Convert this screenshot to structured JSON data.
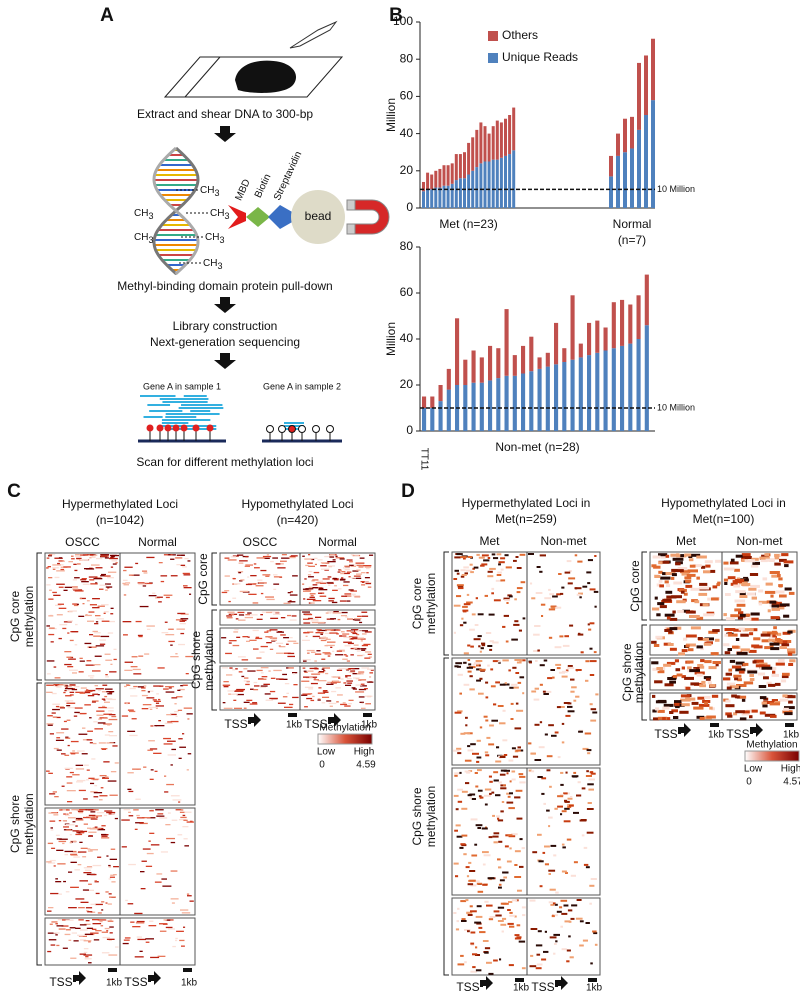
{
  "panel_a": {
    "letter": "A",
    "step1": "Extract and shear DNA to 300-bp",
    "ch": "CH",
    "sub": "3",
    "mbd": "MBD",
    "biotin": "Biotin",
    "streptavidin": "Streptavidin",
    "bead": "bead",
    "step2": "Methyl-binding domain protein pull-down",
    "step3": [
      "Library construction",
      "Next-generation sequencing"
    ],
    "sample1": "Gene A in sample 1",
    "sample2": "Gene A in sample 2",
    "step4": "Scan for different methylation loci"
  },
  "panel_b": {
    "letter": "B"
  },
  "chart_data": [
    {
      "type": "bar",
      "stacked": true,
      "ylabel": "Million",
      "ylim": [
        0,
        100
      ],
      "yticks": [
        0,
        20,
        40,
        60,
        80,
        100
      ],
      "legend": "upper center",
      "series": [
        {
          "name": "Unique Reads",
          "color": "#4f81bd"
        },
        {
          "name": "Others",
          "color": "#c0504d"
        }
      ],
      "groups": [
        {
          "label": [
            "Met (n=23)"
          ],
          "series_values": [
            [
              9,
              10,
              10,
              11,
              11,
              12,
              12,
              13,
              15,
              16,
              16,
              18,
              20,
              22,
              24,
              25,
              25,
              26,
              26,
              27,
              28,
              29,
              31
            ],
            [
              5,
              9,
              8,
              9,
              10,
              11,
              11,
              11,
              14,
              13,
              14,
              17,
              18,
              20,
              22,
              19,
              15,
              18,
              21,
              19,
              20,
              21,
              23
            ]
          ]
        },
        {
          "label": [
            "Normal",
            "(n=7)"
          ],
          "series_values": [
            [
              17,
              28,
              30,
              32,
              42,
              50,
              58
            ],
            [
              11,
              12,
              18,
              17,
              36,
              32,
              33
            ]
          ]
        }
      ],
      "reference_line": {
        "value": 10,
        "label": "10 Million"
      }
    },
    {
      "type": "bar",
      "stacked": true,
      "ylabel": "Million",
      "xlabel": "Non-met (n=28)",
      "ylim": [
        0,
        80
      ],
      "yticks": [
        0,
        20,
        40,
        60,
        80
      ],
      "categories": [
        "TT11",
        null,
        null,
        null,
        null,
        null,
        null,
        null,
        null,
        null,
        null,
        null,
        null,
        null,
        null,
        null,
        null,
        null,
        null,
        null,
        null,
        null,
        null,
        null,
        null,
        null,
        null,
        null
      ],
      "series": [
        {
          "name": "Unique Reads",
          "color": "#4f81bd",
          "values": [
            10,
            10,
            13,
            18,
            20,
            20,
            21,
            21,
            22,
            23,
            24,
            24,
            25,
            26,
            27,
            28,
            29,
            30,
            31,
            32,
            33,
            34,
            35,
            36,
            37,
            38,
            40,
            46
          ]
        },
        {
          "name": "Others",
          "color": "#c0504d",
          "values": [
            5,
            5,
            7,
            9,
            29,
            11,
            14,
            11,
            15,
            13,
            29,
            9,
            12,
            15,
            5,
            6,
            18,
            6,
            28,
            6,
            14,
            14,
            10,
            20,
            20,
            17,
            19,
            22
          ]
        }
      ],
      "reference_line": {
        "value": 10,
        "label": "10 Million"
      }
    }
  ],
  "panel_c": {
    "letter": "C",
    "hyper": {
      "title": "Hypermethylated Loci",
      "n": "(n=1042)",
      "groups": [
        "OSCC",
        "Normal"
      ]
    },
    "hypo": {
      "title": "Hypomethylated Loci",
      "n": "(n=420)",
      "groups": [
        "OSCC",
        "Normal"
      ]
    },
    "core_label": [
      "CpG core",
      "methylation"
    ],
    "shore_label": [
      "CpG shore",
      "methylation"
    ],
    "tss": "TSS",
    "kb": "1kb",
    "legend": {
      "title": "Methylation",
      "low": "Low",
      "high": "High",
      "min": 0,
      "max": 4.59
    }
  },
  "panel_d": {
    "letter": "D",
    "hyper": {
      "title": "Hypermethylated Loci in",
      "n": "Met(n=259)",
      "groups": [
        "Met",
        "Non-met"
      ]
    },
    "hypo": {
      "title": "Hypomethylated Loci in",
      "n": "Met(n=100)",
      "groups": [
        "Met",
        "Non-met"
      ]
    },
    "core_label": [
      "CpG core",
      "methylation"
    ],
    "shore_label": [
      "CpG shore",
      "methylation"
    ],
    "tss": "TSS",
    "kb": "1kb",
    "legend": {
      "title": "Methylation",
      "low": "Low",
      "high": "High",
      "min": 0,
      "max": 4.57
    }
  }
}
